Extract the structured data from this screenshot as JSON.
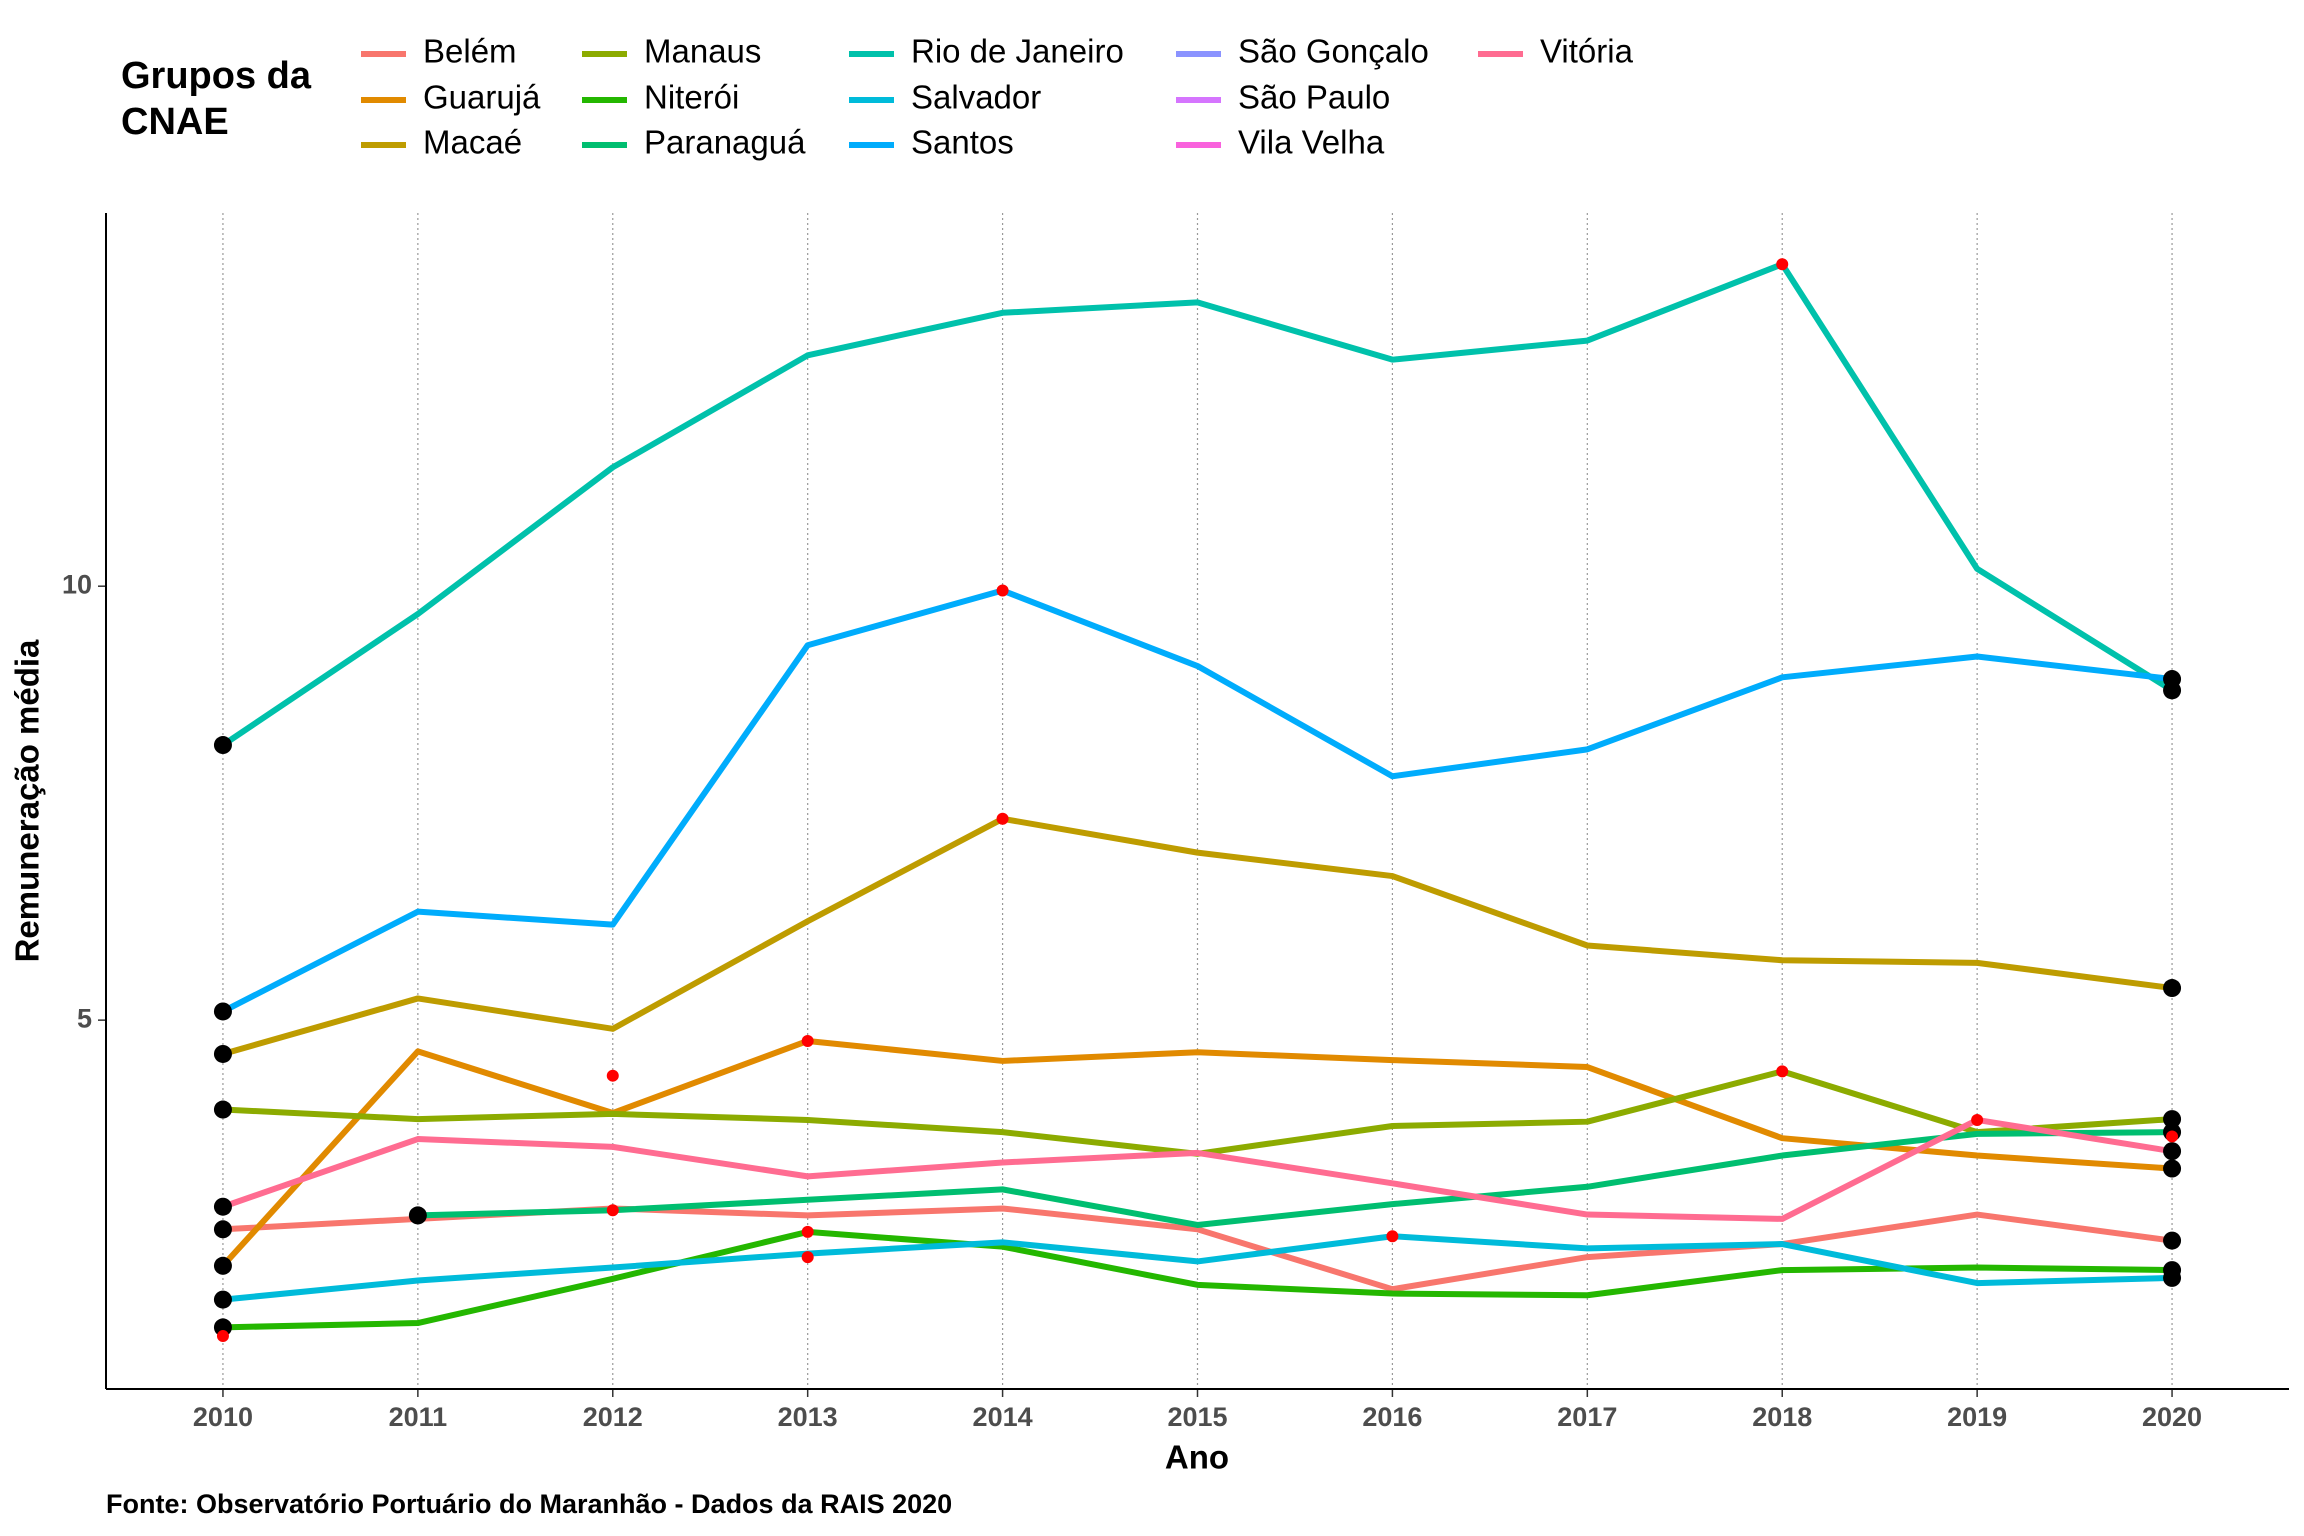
{
  "chart_data": {
    "type": "line",
    "legend_title": [
      "Grupos da",
      "CNAE"
    ],
    "xlabel": "Ano",
    "ylabel": "Remuneração média",
    "caption": "Fonte: Observatório Portuário do Maranhão - Dados da RAIS 2020",
    "x": [
      2010,
      2011,
      2012,
      2013,
      2014,
      2015,
      2016,
      2017,
      2018,
      2019,
      2020
    ],
    "xlim": [
      2009.4,
      2020.6
    ],
    "ylim": [
      0.75,
      14.3
    ],
    "yticks": [
      5,
      10
    ],
    "grid": "vertical-dotted",
    "legend_position": "top",
    "series": [
      {
        "name": "Belém",
        "color": "#F8766D",
        "values": [
          2.59,
          2.71,
          2.83,
          2.75,
          2.83,
          2.59,
          1.9,
          2.27,
          2.42,
          2.76,
          2.46
        ]
      },
      {
        "name": "Guarujá",
        "color": "#E18A00",
        "values": [
          2.17,
          4.64,
          3.93,
          4.76,
          4.53,
          4.63,
          4.54,
          4.46,
          3.64,
          3.44,
          3.29
        ]
      },
      {
        "name": "Macaé",
        "color": "#BE9C00",
        "values": [
          4.61,
          5.25,
          4.9,
          6.14,
          7.32,
          6.93,
          6.66,
          5.86,
          5.69,
          5.66,
          5.37
        ]
      },
      {
        "name": "Manaus",
        "color": "#8CAB00",
        "values": [
          3.97,
          3.86,
          3.92,
          3.85,
          3.71,
          3.46,
          3.78,
          3.83,
          4.41,
          3.71,
          3.86
        ]
      },
      {
        "name": "Niterói",
        "color": "#24B700",
        "values": [
          1.46,
          1.51,
          2.02,
          2.56,
          2.39,
          1.95,
          1.85,
          1.83,
          2.12,
          2.15,
          2.12
        ]
      },
      {
        "name": "Paranaguá",
        "color": "#00BE70",
        "values": [
          null,
          2.75,
          2.81,
          2.93,
          3.05,
          2.64,
          2.88,
          3.08,
          3.44,
          3.69,
          3.71
        ]
      },
      {
        "name": "Rio de Janeiro",
        "color": "#00C1AB",
        "values": [
          8.17,
          9.68,
          11.37,
          12.66,
          13.15,
          13.27,
          12.61,
          12.83,
          13.71,
          10.2,
          8.8
        ]
      },
      {
        "name": "Salvador",
        "color": "#00BBDA",
        "values": [
          1.78,
          2.0,
          2.15,
          2.31,
          2.44,
          2.22,
          2.51,
          2.37,
          2.42,
          1.97,
          2.03
        ]
      },
      {
        "name": "Santos",
        "color": "#00ACFC",
        "values": [
          5.1,
          6.25,
          6.1,
          9.32,
          9.95,
          9.08,
          7.81,
          8.12,
          8.95,
          9.19,
          8.93
        ]
      },
      {
        "name": "São Gonçalo",
        "color": "#8B93FF",
        "values": [
          null,
          null,
          null,
          null,
          null,
          null,
          null,
          null,
          null,
          null,
          null
        ]
      },
      {
        "name": "São Paulo",
        "color": "#D575FE",
        "values": [
          null,
          null,
          null,
          null,
          null,
          null,
          null,
          null,
          null,
          null,
          null
        ]
      },
      {
        "name": "Vila Velha",
        "color": "#F962DD",
        "values": [
          null,
          null,
          null,
          null,
          null,
          null,
          null,
          null,
          null,
          null,
          null
        ]
      },
      {
        "name": "Vitória",
        "color": "#FF6C91",
        "values": [
          2.85,
          3.63,
          3.54,
          3.2,
          3.36,
          3.47,
          3.12,
          2.76,
          2.71,
          3.85,
          3.49
        ]
      }
    ],
    "endpoint_color": "#000000",
    "highlight_points": {
      "color": "#FF0000",
      "x": [
        2010,
        2012,
        2012,
        2013,
        2013,
        2013,
        2014,
        2014,
        2016,
        2018,
        2018,
        2019,
        2020
      ],
      "y": [
        1.36,
        4.36,
        2.81,
        4.76,
        2.56,
        2.27,
        9.95,
        7.32,
        2.51,
        13.71,
        4.41,
        3.85,
        3.66
      ]
    }
  }
}
